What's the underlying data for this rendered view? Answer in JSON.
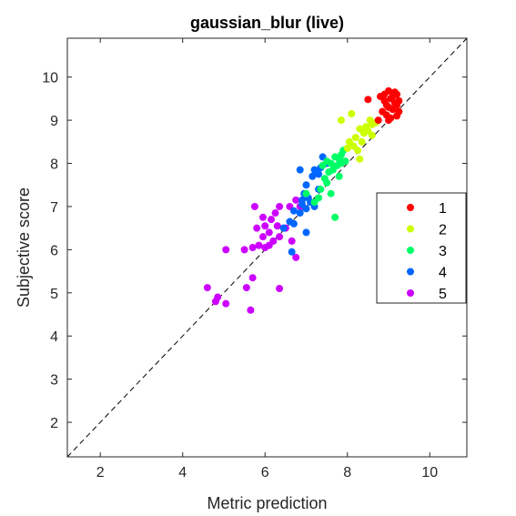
{
  "chart_data": {
    "type": "scatter",
    "title": "gaussian_blur (live)",
    "xlabel": "Metric prediction",
    "ylabel": "Subjective score",
    "xlim": [
      1.2,
      10.9
    ],
    "ylim": [
      1.2,
      10.9
    ],
    "xticks": [
      2,
      4,
      6,
      8,
      10
    ],
    "yticks": [
      2,
      3,
      4,
      5,
      6,
      7,
      8,
      9,
      10
    ],
    "grid": false,
    "legend_position": "right",
    "reference_line": "y = x (dashed)",
    "series": [
      {
        "name": "1",
        "color": "#ff0000",
        "points": [
          [
            8.5,
            9.48
          ],
          [
            8.8,
            9.55
          ],
          [
            8.9,
            9.6
          ],
          [
            9.0,
            9.68
          ],
          [
            9.05,
            9.5
          ],
          [
            9.1,
            9.62
          ],
          [
            9.2,
            9.6
          ],
          [
            9.25,
            9.45
          ],
          [
            9.15,
            9.4
          ],
          [
            9.0,
            9.3
          ],
          [
            9.1,
            9.25
          ],
          [
            9.2,
            9.35
          ],
          [
            8.85,
            9.2
          ],
          [
            8.95,
            9.12
          ],
          [
            9.05,
            9.05
          ],
          [
            9.2,
            9.1
          ],
          [
            8.75,
            9.0
          ],
          [
            9.1,
            9.55
          ],
          [
            9.25,
            9.2
          ],
          [
            8.9,
            9.45
          ],
          [
            9.0,
            9.0
          ],
          [
            9.15,
            9.65
          ],
          [
            8.95,
            9.35
          ]
        ]
      },
      {
        "name": "2",
        "color": "#ccff00",
        "points": [
          [
            8.1,
            9.15
          ],
          [
            8.55,
            9.0
          ],
          [
            8.6,
            8.9
          ],
          [
            8.45,
            8.85
          ],
          [
            8.3,
            8.8
          ],
          [
            8.5,
            8.75
          ],
          [
            8.7,
            8.95
          ],
          [
            8.2,
            8.6
          ],
          [
            8.35,
            8.5
          ],
          [
            8.05,
            8.5
          ],
          [
            8.15,
            8.4
          ],
          [
            8.25,
            8.3
          ],
          [
            8.3,
            8.1
          ],
          [
            8.4,
            8.7
          ],
          [
            7.85,
            9.0
          ],
          [
            8.6,
            8.65
          ],
          [
            8.0,
            8.35
          ]
        ]
      },
      {
        "name": "3",
        "color": "#00ff66",
        "points": [
          [
            7.9,
            8.3
          ],
          [
            7.85,
            8.2
          ],
          [
            7.8,
            8.1
          ],
          [
            7.95,
            8.05
          ],
          [
            7.7,
            8.15
          ],
          [
            7.6,
            8.0
          ],
          [
            7.75,
            7.95
          ],
          [
            7.5,
            8.05
          ],
          [
            7.65,
            7.85
          ],
          [
            7.55,
            7.8
          ],
          [
            7.4,
            7.95
          ],
          [
            7.8,
            7.7
          ],
          [
            7.5,
            7.55
          ],
          [
            7.35,
            7.4
          ],
          [
            7.6,
            7.3
          ],
          [
            7.3,
            7.2
          ],
          [
            7.2,
            7.1
          ],
          [
            7.45,
            7.65
          ],
          [
            7.0,
            7.3
          ],
          [
            7.7,
            6.75
          ],
          [
            7.85,
            8.0
          ]
        ]
      },
      {
        "name": "4",
        "color": "#0066ff",
        "points": [
          [
            7.4,
            8.15
          ],
          [
            7.5,
            8.0
          ],
          [
            7.35,
            7.9
          ],
          [
            7.2,
            7.85
          ],
          [
            7.3,
            7.75
          ],
          [
            6.85,
            7.85
          ],
          [
            7.15,
            7.7
          ],
          [
            7.0,
            7.5
          ],
          [
            6.95,
            7.3
          ],
          [
            7.05,
            7.2
          ],
          [
            7.1,
            7.1
          ],
          [
            6.9,
            7.05
          ],
          [
            7.0,
            6.95
          ],
          [
            6.85,
            6.85
          ],
          [
            7.2,
            7.0
          ],
          [
            6.7,
            6.9
          ],
          [
            6.6,
            6.65
          ],
          [
            6.45,
            6.5
          ],
          [
            6.7,
            6.6
          ],
          [
            7.0,
            6.4
          ],
          [
            6.65,
            5.95
          ],
          [
            6.9,
            7.15
          ],
          [
            7.3,
            7.4
          ]
        ]
      },
      {
        "name": "5",
        "color": "#cc00ff",
        "points": [
          [
            6.75,
            7.15
          ],
          [
            6.85,
            7.0
          ],
          [
            6.6,
            7.0
          ],
          [
            6.35,
            7.0
          ],
          [
            6.25,
            6.85
          ],
          [
            6.15,
            6.7
          ],
          [
            5.8,
            6.5
          ],
          [
            6.0,
            6.55
          ],
          [
            5.95,
            6.75
          ],
          [
            6.3,
            6.55
          ],
          [
            6.5,
            6.5
          ],
          [
            6.1,
            6.4
          ],
          [
            6.35,
            6.3
          ],
          [
            6.2,
            6.2
          ],
          [
            5.85,
            6.1
          ],
          [
            6.0,
            6.05
          ],
          [
            6.1,
            6.1
          ],
          [
            5.5,
            6.0
          ],
          [
            5.7,
            6.05
          ],
          [
            5.05,
            6.0
          ],
          [
            5.95,
            6.3
          ],
          [
            5.7,
            5.35
          ],
          [
            6.35,
            5.1
          ],
          [
            5.55,
            5.12
          ],
          [
            4.6,
            5.12
          ],
          [
            4.85,
            4.9
          ],
          [
            5.05,
            4.75
          ],
          [
            4.8,
            4.8
          ],
          [
            5.65,
            4.6
          ],
          [
            6.75,
            5.82
          ],
          [
            5.75,
            7.0
          ],
          [
            6.65,
            6.2
          ]
        ]
      }
    ]
  }
}
